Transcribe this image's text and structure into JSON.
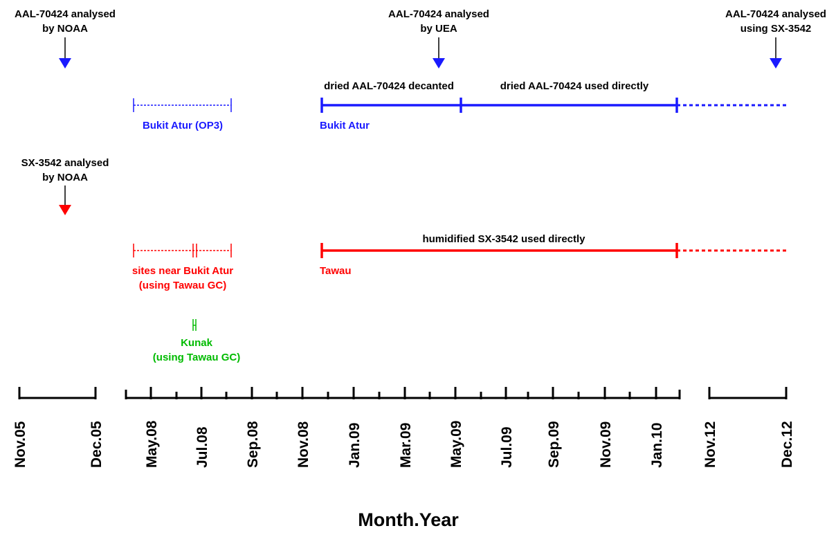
{
  "colors": {
    "aal": "#1a1aff",
    "sx": "#ff0000",
    "kunak": "#00bb00",
    "axis": "#000000"
  },
  "events": {
    "aal_noaa": [
      "AAL-70424 analysed",
      "by NOAA"
    ],
    "aal_uea": [
      "AAL-70424 analysed",
      "by UEA"
    ],
    "aal_sx": [
      "AAL-70424 analysed",
      "using SX-3542"
    ],
    "sx_noaa": [
      "SX-3542 analysed",
      "by NOAA"
    ]
  },
  "segments": {
    "bukit_atur_op3": "Bukit Atur (OP3)",
    "bukit_atur": "Bukit Atur",
    "dried_decanted": "dried AAL-70424 decanted",
    "dried_direct": "dried AAL-70424 used directly",
    "sites_near": [
      "sites near Bukit Atur",
      "(using Tawau GC)"
    ],
    "tawau": "Tawau",
    "humidified": "humidified SX-3542 used directly",
    "kunak": [
      "Kunak",
      "(using Tawau GC)"
    ]
  },
  "axis": {
    "title": "Month.Year",
    "ticks": [
      "Nov.05",
      "Dec.05",
      "May.08",
      "Jul.08",
      "Sep.08",
      "Nov.08",
      "Jan.09",
      "Mar.09",
      "May.09",
      "Jul.09",
      "Sep.09",
      "Nov.09",
      "Jan.10",
      "Nov.12",
      "Dec.12"
    ]
  }
}
